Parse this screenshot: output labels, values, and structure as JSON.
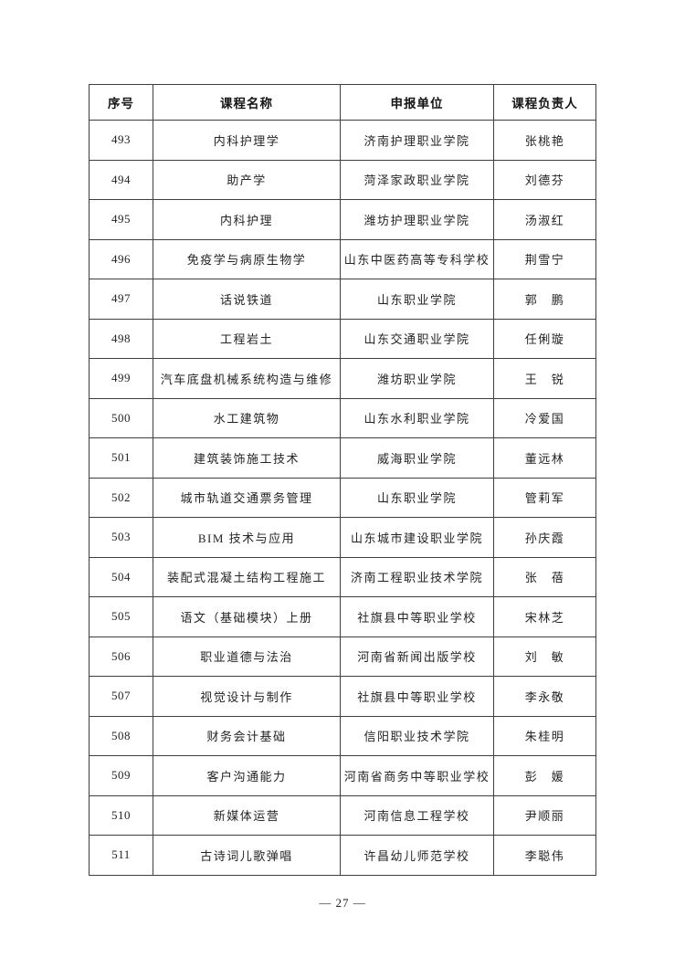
{
  "page": {
    "footer_page_number": "— 27 —"
  },
  "table": {
    "headers": [
      "序号",
      "课程名称",
      "申报单位",
      "课程负责人"
    ],
    "rows": [
      {
        "no": "493",
        "course": "内科护理学",
        "unit": "济南护理职业学院",
        "leader": "张桃艳"
      },
      {
        "no": "494",
        "course": "助产学",
        "unit": "菏泽家政职业学院",
        "leader": "刘德芬"
      },
      {
        "no": "495",
        "course": "内科护理",
        "unit": "潍坊护理职业学院",
        "leader": "汤淑红"
      },
      {
        "no": "496",
        "course": "免疫学与病原生物学",
        "unit": "山东中医药高等专科学校",
        "leader": "荆雪宁"
      },
      {
        "no": "497",
        "course": "话说铁道",
        "unit": "山东职业学院",
        "leader": "郭　鹏"
      },
      {
        "no": "498",
        "course": "工程岩土",
        "unit": "山东交通职业学院",
        "leader": "任俐璇"
      },
      {
        "no": "499",
        "course": "汽车底盘机械系统构造与维修",
        "unit": "潍坊职业学院",
        "leader": "王　锐"
      },
      {
        "no": "500",
        "course": "水工建筑物",
        "unit": "山东水利职业学院",
        "leader": "冷爱国"
      },
      {
        "no": "501",
        "course": "建筑装饰施工技术",
        "unit": "威海职业学院",
        "leader": "董远林"
      },
      {
        "no": "502",
        "course": "城市轨道交通票务管理",
        "unit": "山东职业学院",
        "leader": "管莉军"
      },
      {
        "no": "503",
        "course": "BIM 技术与应用",
        "unit": "山东城市建设职业学院",
        "leader": "孙庆霞"
      },
      {
        "no": "504",
        "course": "装配式混凝土结构工程施工",
        "unit": "济南工程职业技术学院",
        "leader": "张　蓓"
      },
      {
        "no": "505",
        "course": "语文（基础模块）上册",
        "unit": "社旗县中等职业学校",
        "leader": "宋林芝"
      },
      {
        "no": "506",
        "course": "职业道德与法治",
        "unit": "河南省新闻出版学校",
        "leader": "刘　敏"
      },
      {
        "no": "507",
        "course": "视觉设计与制作",
        "unit": "社旗县中等职业学校",
        "leader": "李永敬"
      },
      {
        "no": "508",
        "course": "财务会计基础",
        "unit": "信阳职业技术学院",
        "leader": "朱桂明"
      },
      {
        "no": "509",
        "course": "客户沟通能力",
        "unit": "河南省商务中等职业学校",
        "leader": "彭　媛"
      },
      {
        "no": "510",
        "course": "新媒体运营",
        "unit": "河南信息工程学校",
        "leader": "尹顺丽"
      },
      {
        "no": "511",
        "course": "古诗词儿歌弹唱",
        "unit": "许昌幼儿师范学校",
        "leader": "李聪伟"
      }
    ]
  }
}
